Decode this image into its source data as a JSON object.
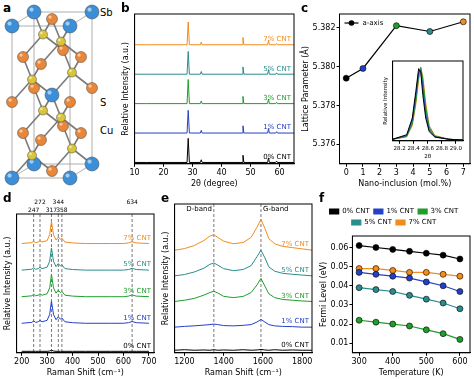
{
  "panel_a": {
    "panel": "a",
    "atoms": [
      {
        "label": "Sb",
        "color": "#3b8ed8"
      },
      {
        "label": "Cu",
        "color": "#e8873a"
      },
      {
        "label": "S",
        "color": "#d9c53c"
      }
    ]
  },
  "chart_data": [
    {
      "panel": "b",
      "type": "line",
      "x_label": "2θ (degree)",
      "y_label": "Relative Intensity (a.u.)",
      "x": [
        10,
        14,
        28.1,
        28.5,
        28.9,
        32.7,
        33.0,
        33.3,
        47.1,
        47.4,
        47.7,
        55.9,
        56.2,
        56.5,
        58.7,
        59.0,
        59.3,
        65
      ],
      "series": [
        {
          "name": "0% CNT",
          "color": "#000000",
          "values": [
            0.05,
            0.05,
            0.05,
            0.95,
            0.05,
            0.05,
            0.15,
            0.05,
            0.05,
            0.32,
            0.05,
            0.05,
            0.22,
            0.05,
            0.05,
            0.1,
            0.05,
            0.05
          ]
        },
        {
          "name": "1% CNT",
          "color": "#2540c8",
          "values": [
            1.15,
            1.15,
            1.15,
            2.0,
            1.15,
            1.15,
            1.25,
            1.15,
            1.15,
            1.42,
            1.15,
            1.15,
            1.32,
            1.15,
            1.15,
            1.2,
            1.15,
            1.15
          ]
        },
        {
          "name": "3% CNT",
          "color": "#1f9e2c",
          "values": [
            2.25,
            2.25,
            2.25,
            3.15,
            2.25,
            2.25,
            2.35,
            2.25,
            2.25,
            2.52,
            2.25,
            2.25,
            2.42,
            2.25,
            2.25,
            2.3,
            2.25,
            2.25
          ]
        },
        {
          "name": "5% CNT",
          "color": "#2a8c8c",
          "values": [
            3.35,
            3.35,
            3.35,
            4.2,
            3.35,
            3.35,
            3.45,
            3.35,
            3.35,
            3.62,
            3.35,
            3.35,
            3.52,
            3.35,
            3.35,
            3.4,
            3.35,
            3.35
          ]
        },
        {
          "name": "7% CNT",
          "color": "#f28c1c",
          "values": [
            4.45,
            4.45,
            4.45,
            5.3,
            4.45,
            4.45,
            4.55,
            4.45,
            4.45,
            4.72,
            4.45,
            4.45,
            4.62,
            4.45,
            4.45,
            4.5,
            4.45,
            4.45
          ]
        }
      ],
      "xlim": [
        10,
        65
      ],
      "xticks": [
        10,
        20,
        30,
        40,
        50,
        60
      ],
      "ylim": [
        0,
        5.6
      ],
      "tick_labels": "x",
      "grid": false,
      "legend": "right",
      "marker": "none"
    },
    {
      "panel": "c",
      "type": "line",
      "x_label": "Nano-inclusion (mol.%)",
      "y_label": "Lattice Parameter (Å)",
      "x": [
        0,
        1,
        3,
        5,
        7
      ],
      "series": [
        {
          "name": "a-axis",
          "color": "#000000",
          "colors": [
            "#000000",
            "#2540c8",
            "#1f9e2c",
            "#2a8c8c",
            "#f28c1c"
          ],
          "values": [
            5.3794,
            5.3799,
            5.3821,
            5.3818,
            5.3823
          ]
        }
      ],
      "xlim": [
        -0.4,
        7.4
      ],
      "xticks": [
        0,
        1,
        2,
        3,
        4,
        5,
        6,
        7
      ],
      "ylim": [
        5.375,
        5.3827
      ],
      "yticks": [
        5.376,
        5.378,
        {
          "value": 5.38,
          "label": "5.380"
        },
        5.382
      ],
      "grid": false,
      "legend": "top-left",
      "marker": "circle",
      "inset": {
        "type": "line",
        "x_label": "2θ",
        "y_label": "Relative Intensity",
        "x": [
          28.1,
          28.3,
          28.38,
          28.43,
          28.47,
          28.5,
          28.53,
          28.57,
          28.62,
          28.7,
          28.9,
          29.1
        ],
        "series": [
          {
            "color": "#000000",
            "values": [
              0.02,
              0.08,
              0.3,
              0.65,
              0.95,
              0.9,
              0.6,
              0.3,
              0.12,
              0.05,
              0.02,
              0.01
            ]
          },
          {
            "color": "#2540c8",
            "values": [
              0.02,
              0.07,
              0.27,
              0.6,
              0.9,
              0.93,
              0.68,
              0.35,
              0.14,
              0.05,
              0.02,
              0.01
            ]
          },
          {
            "color": "#1f9e2c",
            "values": [
              0.02,
              0.06,
              0.22,
              0.52,
              0.85,
              0.97,
              0.8,
              0.45,
              0.18,
              0.06,
              0.02,
              0.01
            ]
          },
          {
            "color": "#2a8c8c",
            "values": [
              0.02,
              0.06,
              0.24,
              0.55,
              0.88,
              0.95,
              0.75,
              0.4,
              0.16,
              0.06,
              0.02,
              0.01
            ]
          },
          {
            "color": "#f28c1c",
            "values": [
              0.02,
              0.05,
              0.2,
              0.48,
              0.8,
              0.95,
              0.85,
              0.5,
              0.2,
              0.07,
              0.02,
              0.01
            ]
          }
        ],
        "xlim": [
          28.1,
          29.1
        ],
        "xticks": [
          28.2,
          28.4,
          28.6,
          28.8,
          {
            "value": 29,
            "label": "29.0"
          }
        ],
        "ylim": [
          0,
          1.05
        ],
        "tick_labels": "x",
        "grid": false,
        "marker": "none"
      }
    },
    {
      "panel": "d",
      "type": "line",
      "x_label": "Raman Shift (cm⁻¹)",
      "y_label": "Relative Intensity (a.u.)",
      "x": [
        200,
        240,
        247,
        255,
        265,
        272,
        280,
        300,
        310,
        317,
        325,
        335,
        344,
        352,
        358,
        370,
        400,
        450,
        500,
        550,
        600,
        620,
        634,
        650,
        700
      ],
      "series": [
        {
          "name": "0% CNT",
          "color": "#000000",
          "values": [
            0.05,
            0.05,
            0.05,
            0.05,
            0.05,
            0.05,
            0.05,
            0.05,
            0.06,
            0.09,
            0.06,
            0.05,
            0.05,
            0.05,
            0.05,
            0.05,
            0.05,
            0.05,
            0.05,
            0.05,
            0.05,
            0.05,
            0.05,
            0.05,
            0.05
          ]
        },
        {
          "name": "1% CNT",
          "color": "#2540c8",
          "values": [
            1.0,
            1.03,
            1.08,
            1.03,
            1.05,
            1.1,
            1.05,
            1.1,
            1.3,
            1.75,
            1.3,
            1.12,
            1.22,
            1.14,
            1.18,
            1.05,
            1.02,
            1.0,
            1.0,
            1.0,
            1.0,
            1.02,
            1.06,
            1.02,
            1.0
          ]
        },
        {
          "name": "3% CNT",
          "color": "#1f9e2c",
          "values": [
            1.9,
            1.93,
            1.98,
            1.93,
            1.95,
            2.0,
            1.95,
            2.0,
            2.2,
            2.65,
            2.2,
            2.02,
            2.12,
            2.04,
            2.08,
            1.95,
            1.92,
            1.9,
            1.9,
            1.9,
            1.9,
            1.92,
            1.96,
            1.92,
            1.9
          ]
        },
        {
          "name": "5% CNT",
          "color": "#2a8c8c",
          "values": [
            2.8,
            2.83,
            2.88,
            2.83,
            2.85,
            2.9,
            2.85,
            2.9,
            3.1,
            3.55,
            3.1,
            2.92,
            3.02,
            2.94,
            2.98,
            2.85,
            2.82,
            2.8,
            2.8,
            2.8,
            2.8,
            2.82,
            2.86,
            2.82,
            2.8
          ]
        },
        {
          "name": "7% CNT",
          "color": "#f28c1c",
          "values": [
            3.7,
            3.73,
            3.78,
            3.73,
            3.75,
            3.8,
            3.75,
            3.8,
            4.0,
            4.45,
            4.0,
            3.82,
            3.92,
            3.84,
            3.88,
            3.75,
            3.72,
            3.7,
            3.7,
            3.7,
            3.7,
            3.72,
            3.76,
            3.72,
            3.7
          ]
        }
      ],
      "xlim": [
        180,
        720
      ],
      "xticks": [
        200,
        300,
        400,
        500,
        600,
        700
      ],
      "ylim": [
        0,
        4.7
      ],
      "reference_lines": [
        247,
        272,
        317,
        344,
        358,
        634
      ],
      "tick_labels": "x",
      "grid": false,
      "legend": "right",
      "marker": "none"
    },
    {
      "panel": "e",
      "type": "line",
      "x_label": "Raman Shift (cm⁻¹)",
      "y_label": "Relative Intensity (a.u.)",
      "x": [
        1150,
        1200,
        1250,
        1300,
        1330,
        1350,
        1370,
        1400,
        1450,
        1500,
        1540,
        1570,
        1590,
        1610,
        1630,
        1660,
        1700,
        1750,
        1800,
        1850
      ],
      "series": [
        {
          "name": "0% CNT",
          "color": "#000000",
          "values": [
            0.1,
            0.12,
            0.1,
            0.11,
            0.1,
            0.12,
            0.1,
            0.11,
            0.1,
            0.12,
            0.1,
            0.11,
            0.13,
            0.11,
            0.1,
            0.12,
            0.1,
            0.11,
            0.1,
            0.1
          ]
        },
        {
          "name": "1% CNT",
          "color": "#2540c8",
          "values": [
            1.0,
            1.03,
            1.05,
            1.08,
            1.1,
            1.12,
            1.1,
            1.06,
            1.05,
            1.07,
            1.1,
            1.2,
            1.3,
            1.2,
            1.1,
            1.05,
            1.03,
            1.02,
            1.0,
            1.0
          ]
        },
        {
          "name": "3% CNT",
          "color": "#1f9e2c",
          "values": [
            2.0,
            2.05,
            2.12,
            2.25,
            2.35,
            2.4,
            2.33,
            2.2,
            2.15,
            2.2,
            2.35,
            2.65,
            2.9,
            2.6,
            2.3,
            2.15,
            2.08,
            2.05,
            2.02,
            2.0
          ]
        },
        {
          "name": "5% CNT",
          "color": "#2a8c8c",
          "values": [
            3.0,
            3.05,
            3.15,
            3.3,
            3.45,
            3.5,
            3.42,
            3.28,
            3.2,
            3.25,
            3.4,
            3.75,
            4.0,
            3.7,
            3.35,
            3.18,
            3.1,
            3.06,
            3.03,
            3.0
          ]
        },
        {
          "name": "7% CNT",
          "color": "#f28c1c",
          "values": [
            4.0,
            4.06,
            4.18,
            4.38,
            4.55,
            4.6,
            4.5,
            4.35,
            4.25,
            4.3,
            4.5,
            4.9,
            5.2,
            4.85,
            4.45,
            4.25,
            4.15,
            4.1,
            4.05,
            4.0
          ]
        }
      ],
      "xlim": [
        1150,
        1850
      ],
      "xticks": [
        1200,
        1400,
        1600,
        1800
      ],
      "ylim": [
        0,
        5.8
      ],
      "reference_lines": [
        {
          "value": 1350,
          "label": "D-band"
        },
        {
          "value": 1590,
          "label": "G-band"
        }
      ],
      "tick_labels": "x",
      "grid": false,
      "legend": "right",
      "marker": "none"
    },
    {
      "panel": "f",
      "type": "line",
      "x_label": "Temperature (K)",
      "y_label": "Fermi Level (eV)",
      "x": [
        300,
        350,
        400,
        450,
        500,
        550,
        600
      ],
      "series": [
        {
          "name": "0% CNT",
          "color": "#000000",
          "values": [
            0.061,
            0.06,
            0.059,
            0.058,
            0.057,
            0.056,
            0.054
          ]
        },
        {
          "name": "1% CNT",
          "color": "#2540c8",
          "values": [
            0.047,
            0.046,
            0.045,
            0.044,
            0.042,
            0.04,
            0.037
          ]
        },
        {
          "name": "3% CNT",
          "color": "#1f9e2c",
          "values": [
            0.022,
            0.021,
            0.02,
            0.019,
            0.017,
            0.015,
            0.012
          ]
        },
        {
          "name": "5% CNT",
          "color": "#2a8c8c",
          "values": [
            0.039,
            0.038,
            0.037,
            0.035,
            0.033,
            0.031,
            0.028
          ]
        },
        {
          "name": "7% CNT",
          "color": "#f28c1c",
          "values": [
            0.049,
            0.049,
            0.048,
            0.047,
            0.047,
            0.046,
            0.045
          ]
        }
      ],
      "xlim": [
        280,
        630
      ],
      "xticks": [
        300,
        400,
        500,
        600
      ],
      "ylim": [
        0.005,
        0.066
      ],
      "yticks": [
        0.01,
        0.02,
        0.03,
        0.04,
        0.05,
        0.06
      ],
      "grid": false,
      "legend": "top",
      "marker": "circle"
    }
  ]
}
